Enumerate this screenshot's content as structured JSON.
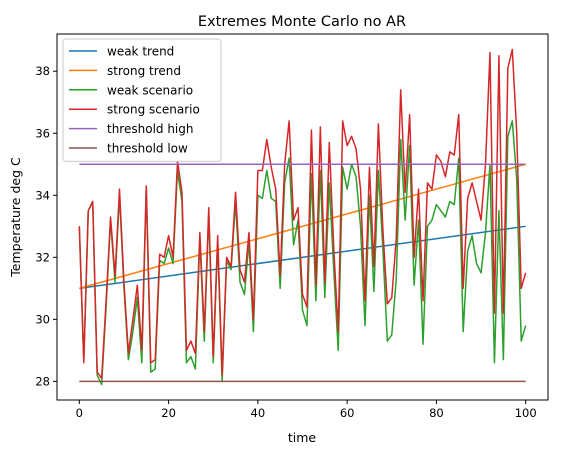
{
  "chart_data": {
    "type": "line",
    "title": "Extremes Monte Carlo no AR",
    "xlabel": "time",
    "ylabel": "Temperature deg C",
    "xlim": [
      -5,
      105
    ],
    "ylim": [
      27.4,
      39.2
    ],
    "x_ticks": [
      0,
      20,
      40,
      60,
      80,
      100
    ],
    "y_ticks": [
      28,
      30,
      32,
      34,
      36,
      38
    ],
    "grid": false,
    "legend_position": "top-left",
    "series": [
      {
        "name": "weak trend",
        "color": "#1f77b4",
        "x": [
          0,
          100
        ],
        "values": [
          31.0,
          33.0
        ]
      },
      {
        "name": "strong trend",
        "color": "#ff7f0e",
        "x": [
          0,
          100
        ],
        "values": [
          31.0,
          35.0
        ]
      },
      {
        "name": "weak scenario",
        "color": "#2ca02c",
        "x": [
          0,
          1,
          2,
          3,
          4,
          5,
          6,
          7,
          8,
          9,
          10,
          11,
          12,
          13,
          14,
          15,
          16,
          17,
          18,
          19,
          20,
          21,
          22,
          23,
          24,
          25,
          26,
          27,
          28,
          29,
          30,
          31,
          32,
          33,
          34,
          35,
          36,
          37,
          38,
          39,
          40,
          41,
          42,
          43,
          44,
          45,
          46,
          47,
          48,
          49,
          50,
          51,
          52,
          53,
          54,
          55,
          56,
          57,
          58,
          59,
          60,
          61,
          62,
          63,
          64,
          65,
          66,
          67,
          68,
          69,
          70,
          71,
          72,
          73,
          74,
          75,
          76,
          77,
          78,
          79,
          80,
          81,
          82,
          83,
          84,
          85,
          86,
          87,
          88,
          89,
          90,
          91,
          92,
          93,
          94,
          95,
          96,
          97,
          98,
          99,
          100
        ],
        "values": [
          33.0,
          28.7,
          33.5,
          33.8,
          28.2,
          27.9,
          30.4,
          33.2,
          31.2,
          34.0,
          31.0,
          28.7,
          29.6,
          30.7,
          28.6,
          34.2,
          28.3,
          28.4,
          31.9,
          31.8,
          32.3,
          31.8,
          34.8,
          33.8,
          28.6,
          28.8,
          28.4,
          32.6,
          29.3,
          33.4,
          28.6,
          32.5,
          28.0,
          31.9,
          31.6,
          33.8,
          31.2,
          30.8,
          32.5,
          29.6,
          34.0,
          33.9,
          34.8,
          33.9,
          33.8,
          31.0,
          34.4,
          35.2,
          32.4,
          33.2,
          30.3,
          29.8,
          34.7,
          30.6,
          34.8,
          30.7,
          34.4,
          31.6,
          29.0,
          34.9,
          34.2,
          35.0,
          34.6,
          33.0,
          29.8,
          34.0,
          30.9,
          34.8,
          32.3,
          29.3,
          29.5,
          31.3,
          35.8,
          33.2,
          35.6,
          31.1,
          33.2,
          29.2,
          33.0,
          33.2,
          33.7,
          33.5,
          33.3,
          33.8,
          33.7,
          35.2,
          29.6,
          32.2,
          32.7,
          31.8,
          31.5,
          32.8,
          35.0,
          28.6,
          33.5,
          28.7,
          35.9,
          36.4,
          34.5,
          29.3,
          29.8
        ]
      },
      {
        "name": "strong scenario",
        "color": "#d62728",
        "x": [
          0,
          1,
          2,
          3,
          4,
          5,
          6,
          7,
          8,
          9,
          10,
          11,
          12,
          13,
          14,
          15,
          16,
          17,
          18,
          19,
          20,
          21,
          22,
          23,
          24,
          25,
          26,
          27,
          28,
          29,
          30,
          31,
          32,
          33,
          34,
          35,
          36,
          37,
          38,
          39,
          40,
          41,
          42,
          43,
          44,
          45,
          46,
          47,
          48,
          49,
          50,
          51,
          52,
          53,
          54,
          55,
          56,
          57,
          58,
          59,
          60,
          61,
          62,
          63,
          64,
          65,
          66,
          67,
          68,
          69,
          70,
          71,
          72,
          73,
          74,
          75,
          76,
          77,
          78,
          79,
          80,
          81,
          82,
          83,
          84,
          85,
          86,
          87,
          88,
          89,
          90,
          91,
          92,
          93,
          94,
          95,
          96,
          97,
          98,
          99,
          100
        ],
        "values": [
          33.0,
          28.6,
          33.5,
          33.8,
          28.3,
          28.1,
          30.6,
          33.3,
          31.4,
          34.2,
          31.2,
          28.9,
          30.0,
          31.1,
          29.0,
          34.3,
          28.6,
          28.7,
          32.1,
          32.0,
          32.7,
          32.0,
          35.1,
          34.1,
          29.0,
          29.3,
          28.9,
          32.8,
          29.6,
          33.6,
          28.8,
          32.7,
          28.2,
          32.0,
          31.7,
          34.1,
          31.6,
          31.2,
          32.8,
          30.0,
          34.8,
          34.8,
          35.8,
          34.9,
          34.2,
          31.4,
          35.0,
          36.4,
          33.2,
          33.6,
          30.8,
          30.4,
          36.1,
          31.1,
          36.2,
          31.2,
          35.7,
          32.3,
          29.6,
          36.4,
          35.6,
          35.9,
          35.5,
          34.2,
          30.6,
          34.9,
          31.7,
          36.3,
          32.9,
          30.5,
          30.7,
          32.6,
          37.4,
          34.1,
          36.6,
          32.0,
          34.2,
          30.6,
          34.4,
          34.2,
          35.3,
          35.1,
          34.6,
          35.4,
          35.3,
          36.6,
          31.0,
          33.9,
          34.4,
          33.8,
          33.2,
          35.0,
          38.6,
          30.2,
          38.5,
          30.2,
          38.1,
          38.7,
          36.0,
          31.0,
          31.5
        ]
      },
      {
        "name": "threshold high",
        "color": "#9467bd",
        "x": [
          0,
          100
        ],
        "values": [
          35.0,
          35.0
        ]
      },
      {
        "name": "threshold low",
        "color": "#8c564b",
        "x": [
          0,
          100
        ],
        "values": [
          28.0,
          28.0
        ]
      }
    ]
  }
}
